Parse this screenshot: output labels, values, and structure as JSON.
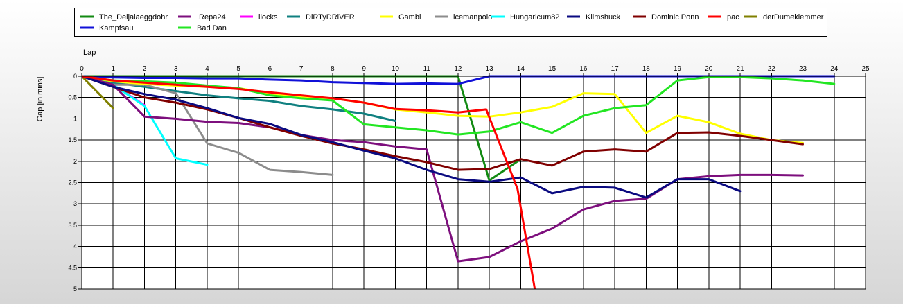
{
  "chart_data": {
    "type": "line",
    "title": "",
    "xlabel": "Lap",
    "ylabel": "Gap [in mins]",
    "xlim": [
      0,
      25
    ],
    "ylim": [
      0,
      5
    ],
    "y_inverted": true,
    "x_ticks": [
      0,
      1,
      2,
      3,
      4,
      5,
      6,
      7,
      8,
      9,
      10,
      11,
      12,
      13,
      14,
      15,
      16,
      17,
      18,
      19,
      20,
      21,
      22,
      23,
      24,
      25
    ],
    "y_ticks": [
      0,
      0.5,
      1,
      1.5,
      2,
      2.5,
      3,
      3.5,
      4,
      4.5,
      5
    ],
    "grid": true,
    "legend_position": "top",
    "series": [
      {
        "name": "The_Deijalaeggdohr",
        "color": "#138a13",
        "x": [
          0,
          1,
          2,
          3,
          4,
          5,
          6,
          7,
          8,
          9,
          10,
          11,
          12,
          13,
          14
        ],
        "y": [
          0,
          0,
          0,
          0,
          0,
          0,
          0,
          0,
          0,
          0,
          0,
          0,
          0,
          2.45,
          1.95
        ]
      },
      {
        "name": ".Repa24",
        "color": "#7d0f7d",
        "x": [
          0,
          1,
          2,
          3,
          4,
          5,
          6,
          7,
          8,
          9,
          10,
          11,
          12,
          13,
          14,
          15,
          16,
          17,
          18,
          19,
          20,
          21,
          22,
          23
        ],
        "y": [
          0,
          0.2,
          0.95,
          1,
          1.07,
          1.1,
          1.2,
          1.38,
          1.5,
          1.55,
          1.65,
          1.72,
          4.35,
          4.25,
          3.88,
          3.58,
          3.13,
          2.93,
          2.88,
          2.42,
          2.35,
          2.32,
          2.32,
          2.33
        ]
      },
      {
        "name": "llocks",
        "color": "#ff00ff",
        "x": [
          0,
          1,
          2
        ],
        "y": [
          0,
          0.2,
          0.68
        ]
      },
      {
        "name": "DiRTyDRiVER",
        "color": "#108080",
        "x": [
          0,
          1,
          2,
          3,
          4,
          5,
          6,
          7,
          8,
          9,
          10
        ],
        "y": [
          0,
          0.15,
          0.25,
          0.35,
          0.45,
          0.52,
          0.58,
          0.7,
          0.78,
          0.88,
          1.05
        ]
      },
      {
        "name": "Gambi",
        "color": "#ffff00",
        "x": [
          0,
          1,
          2,
          3,
          4,
          5,
          6,
          7,
          8,
          9,
          10,
          11,
          12,
          13,
          14,
          15,
          16,
          17,
          18,
          19,
          20,
          21,
          22,
          23
        ],
        "y": [
          0,
          0.12,
          0.18,
          0.22,
          0.25,
          0.28,
          0.4,
          0.48,
          0.52,
          0.62,
          0.78,
          0.85,
          0.93,
          0.95,
          0.85,
          0.72,
          0.4,
          0.42,
          1.33,
          0.93,
          1.08,
          1.35,
          1.5,
          1.57
        ]
      },
      {
        "name": "icemanpolo",
        "color": "#8c8c8c",
        "x": [
          0,
          1,
          2,
          3,
          4,
          5,
          6,
          7,
          8
        ],
        "y": [
          0,
          0.2,
          0.2,
          0.4,
          1.58,
          1.8,
          2.2,
          2.25,
          2.32
        ]
      },
      {
        "name": "Hungaricum82",
        "color": "#00ffff",
        "x": [
          0,
          1,
          2,
          3,
          4
        ],
        "y": [
          0,
          0.2,
          0.7,
          1.93,
          2.08
        ]
      },
      {
        "name": "Klimshuck",
        "color": "#0a0a80",
        "x": [
          0,
          1,
          2,
          3,
          4,
          5,
          6,
          7,
          8,
          9,
          10,
          11,
          12,
          13,
          14,
          15,
          16,
          17,
          18,
          19,
          20,
          21
        ],
        "y": [
          0,
          0.25,
          0.42,
          0.55,
          0.75,
          0.98,
          1.12,
          1.38,
          1.55,
          1.75,
          1.93,
          2.2,
          2.42,
          2.48,
          2.38,
          2.75,
          2.6,
          2.62,
          2.85,
          2.42,
          2.42,
          2.7
        ]
      },
      {
        "name": "Dominic Ponn",
        "color": "#800000",
        "x": [
          0,
          1,
          2,
          3,
          4,
          5,
          6,
          7,
          8,
          9,
          10,
          11,
          12,
          13,
          14,
          15,
          16,
          17,
          18,
          19,
          20,
          21,
          22,
          23
        ],
        "y": [
          0,
          0.25,
          0.5,
          0.62,
          0.78,
          0.98,
          1.2,
          1.4,
          1.58,
          1.72,
          1.88,
          2.02,
          2.2,
          2.18,
          1.95,
          2.1,
          1.77,
          1.72,
          1.77,
          1.33,
          1.32,
          1.4,
          1.5,
          1.6
        ]
      },
      {
        "name": "pac",
        "color": "#ff0000",
        "x": [
          0,
          1,
          2,
          3,
          4,
          5,
          6,
          7,
          8,
          9,
          10,
          11,
          12,
          12.9,
          13.9,
          14.45
        ],
        "y": [
          0,
          0.1,
          0.15,
          0.2,
          0.25,
          0.3,
          0.38,
          0.45,
          0.52,
          0.62,
          0.77,
          0.8,
          0.85,
          0.78,
          2.65,
          5
        ]
      },
      {
        "name": "derDumeklemmer",
        "color": "#808000",
        "x": [
          0,
          1
        ],
        "y": [
          0,
          0.75
        ]
      },
      {
        "name": "Kampfsau",
        "color": "#1010d8",
        "x": [
          0,
          1,
          2,
          3,
          4,
          5,
          6,
          7,
          8,
          9,
          10,
          11,
          12,
          13,
          14,
          15,
          16,
          17,
          18,
          19,
          20,
          21,
          22,
          23,
          24
        ],
        "y": [
          0,
          0.03,
          0.04,
          0.04,
          0.05,
          0.05,
          0.08,
          0.1,
          0.14,
          0.16,
          0.18,
          0.17,
          0.18,
          0,
          0,
          0,
          0,
          0,
          0,
          0,
          0,
          0,
          0,
          0,
          0
        ]
      },
      {
        "name": "Bad Dan",
        "color": "#22e622",
        "x": [
          0,
          1,
          2,
          3,
          4,
          5,
          6,
          7,
          8,
          9,
          10,
          11,
          12,
          13,
          14,
          15,
          16,
          17,
          18,
          19,
          20,
          21,
          22,
          23,
          24
        ],
        "y": [
          0,
          0.1,
          0.12,
          0.15,
          0.22,
          0.28,
          0.45,
          0.52,
          0.57,
          1.13,
          1.2,
          1.27,
          1.37,
          1.3,
          1.08,
          1.33,
          0.93,
          0.75,
          0.68,
          0.1,
          0.02,
          0.02,
          0.05,
          0.1,
          0.18
        ]
      }
    ]
  }
}
